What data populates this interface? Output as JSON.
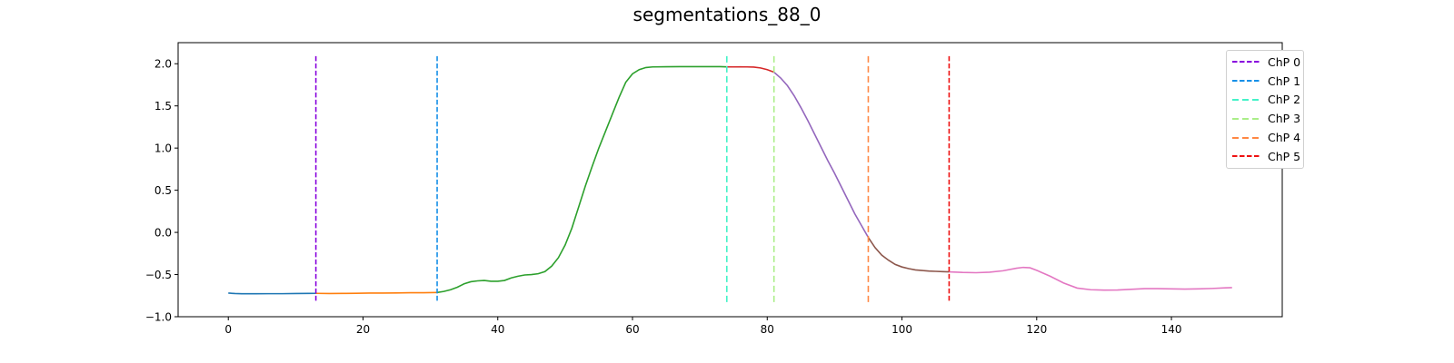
{
  "chart_data": {
    "type": "line",
    "title": "segmentations_88_0",
    "xlabel": "",
    "ylabel": "",
    "xlim": [
      -7.45,
      156.45
    ],
    "ylim": [
      -1.0,
      2.25
    ],
    "xticks": [
      0,
      20,
      40,
      60,
      80,
      100,
      120,
      140
    ],
    "yticks": [
      -1.0,
      -0.5,
      0.0,
      0.5,
      1.0,
      1.5,
      2.0
    ],
    "grid": false,
    "legend_position": "top-right",
    "segments": [
      {
        "color": "#1f77b4",
        "points": [
          [
            0,
            -0.72
          ],
          [
            1,
            -0.725
          ],
          [
            2,
            -0.728
          ],
          [
            4,
            -0.728
          ],
          [
            6,
            -0.727
          ],
          [
            8,
            -0.727
          ],
          [
            10,
            -0.725
          ],
          [
            12,
            -0.724
          ],
          [
            13,
            -0.723
          ]
        ]
      },
      {
        "color": "#ff7f0e",
        "points": [
          [
            13,
            -0.723
          ],
          [
            15,
            -0.725
          ],
          [
            17,
            -0.724
          ],
          [
            19,
            -0.722
          ],
          [
            21,
            -0.72
          ],
          [
            23,
            -0.719
          ],
          [
            25,
            -0.718
          ],
          [
            27,
            -0.716
          ],
          [
            29,
            -0.715
          ],
          [
            31,
            -0.713
          ]
        ]
      },
      {
        "color": "#2ca02c",
        "points": [
          [
            31,
            -0.713
          ],
          [
            32,
            -0.7
          ],
          [
            33,
            -0.68
          ],
          [
            34,
            -0.65
          ],
          [
            35,
            -0.61
          ],
          [
            36,
            -0.585
          ],
          [
            37,
            -0.575
          ],
          [
            38,
            -0.57
          ],
          [
            39,
            -0.58
          ],
          [
            40,
            -0.58
          ],
          [
            41,
            -0.57
          ],
          [
            42,
            -0.54
          ],
          [
            43,
            -0.52
          ],
          [
            44,
            -0.505
          ],
          [
            45,
            -0.5
          ],
          [
            46,
            -0.49
          ],
          [
            47,
            -0.465
          ],
          [
            48,
            -0.4
          ],
          [
            49,
            -0.3
          ],
          [
            50,
            -0.15
          ],
          [
            51,
            0.05
          ],
          [
            52,
            0.3
          ],
          [
            53,
            0.55
          ],
          [
            54,
            0.78
          ],
          [
            55,
            1.0
          ],
          [
            56,
            1.2
          ],
          [
            57,
            1.4
          ],
          [
            58,
            1.6
          ],
          [
            59,
            1.78
          ],
          [
            60,
            1.88
          ],
          [
            61,
            1.93
          ],
          [
            62,
            1.955
          ],
          [
            63,
            1.962
          ],
          [
            65,
            1.964
          ],
          [
            67,
            1.965
          ],
          [
            69,
            1.966
          ],
          [
            71,
            1.966
          ],
          [
            73,
            1.965
          ],
          [
            74,
            1.963
          ]
        ]
      },
      {
        "color": "#d62728",
        "points": [
          [
            74,
            1.963
          ],
          [
            75,
            1.962
          ],
          [
            76,
            1.963
          ],
          [
            77,
            1.962
          ],
          [
            78,
            1.96
          ],
          [
            79,
            1.95
          ],
          [
            80,
            1.93
          ],
          [
            81,
            1.9
          ]
        ]
      },
      {
        "color": "#9467bd",
        "points": [
          [
            81,
            1.9
          ],
          [
            82,
            1.83
          ],
          [
            83,
            1.74
          ],
          [
            84,
            1.62
          ],
          [
            85,
            1.48
          ],
          [
            86,
            1.33
          ],
          [
            87,
            1.17
          ],
          [
            88,
            1.01
          ],
          [
            89,
            0.85
          ],
          [
            90,
            0.7
          ],
          [
            91,
            0.54
          ],
          [
            92,
            0.38
          ],
          [
            93,
            0.22
          ],
          [
            94,
            0.08
          ],
          [
            95,
            -0.06
          ]
        ]
      },
      {
        "color": "#8c564b",
        "points": [
          [
            95,
            -0.06
          ],
          [
            96,
            -0.18
          ],
          [
            97,
            -0.27
          ],
          [
            98,
            -0.33
          ],
          [
            99,
            -0.38
          ],
          [
            100,
            -0.41
          ],
          [
            101,
            -0.43
          ],
          [
            102,
            -0.445
          ],
          [
            103,
            -0.452
          ],
          [
            104,
            -0.458
          ],
          [
            105,
            -0.462
          ],
          [
            106,
            -0.465
          ],
          [
            107,
            -0.468
          ]
        ]
      },
      {
        "color": "#e377c2",
        "points": [
          [
            107,
            -0.468
          ],
          [
            109,
            -0.475
          ],
          [
            111,
            -0.478
          ],
          [
            113,
            -0.472
          ],
          [
            115,
            -0.455
          ],
          [
            117,
            -0.425
          ],
          [
            118,
            -0.415
          ],
          [
            119,
            -0.42
          ],
          [
            120,
            -0.45
          ],
          [
            122,
            -0.52
          ],
          [
            124,
            -0.6
          ],
          [
            126,
            -0.66
          ],
          [
            128,
            -0.68
          ],
          [
            130,
            -0.685
          ],
          [
            132,
            -0.683
          ],
          [
            134,
            -0.675
          ],
          [
            136,
            -0.667
          ],
          [
            138,
            -0.667
          ],
          [
            140,
            -0.67
          ],
          [
            142,
            -0.672
          ],
          [
            144,
            -0.67
          ],
          [
            146,
            -0.665
          ],
          [
            148,
            -0.658
          ],
          [
            149,
            -0.655
          ]
        ]
      }
    ],
    "changepoints": [
      {
        "label": "ChP 0",
        "x": 13,
        "color": "#8800dd",
        "style": "dense"
      },
      {
        "label": "ChP 1",
        "x": 31,
        "color": "#1790e8",
        "style": "dense"
      },
      {
        "label": "ChP 2",
        "x": 74,
        "color": "#44f2c8",
        "style": "sparse"
      },
      {
        "label": "ChP 3",
        "x": 81,
        "color": "#aaee88",
        "style": "sparse"
      },
      {
        "label": "ChP 4",
        "x": 95,
        "color": "#ff8844",
        "style": "sparse"
      },
      {
        "label": "ChP 5",
        "x": 107,
        "color": "#ee1111",
        "style": "dense"
      }
    ]
  }
}
